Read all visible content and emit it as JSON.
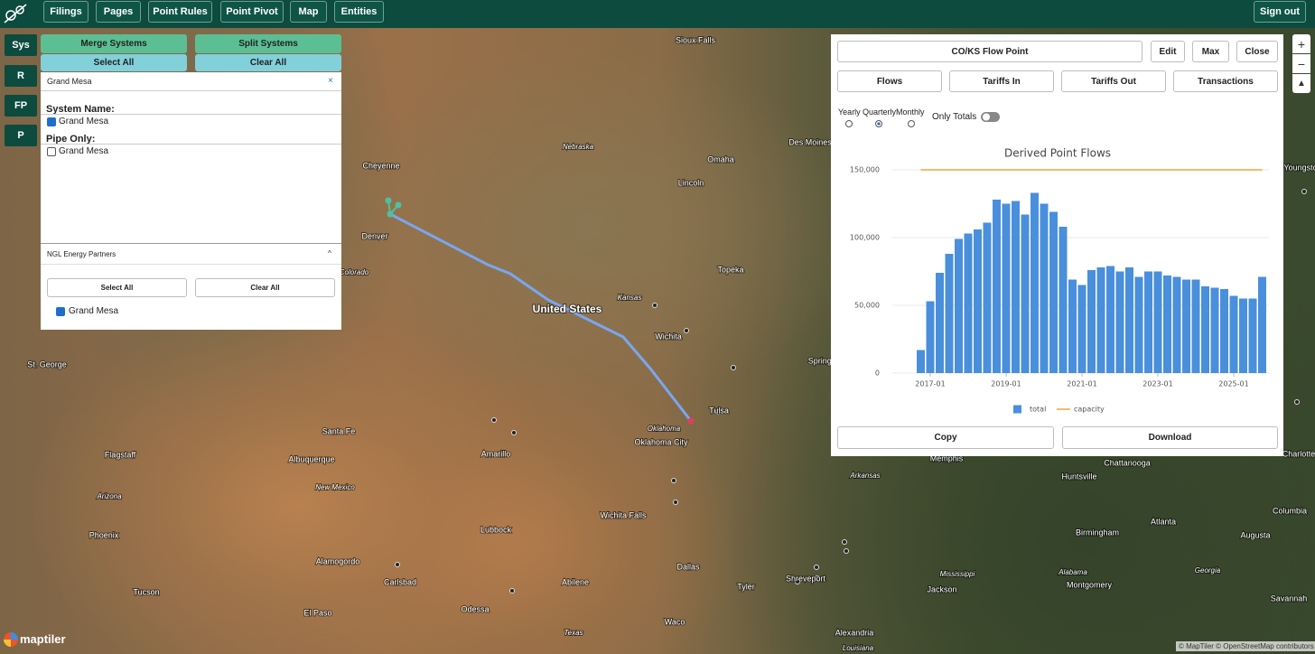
{
  "nav": {
    "items": [
      "Filings",
      "Pages",
      "Point Rules",
      "Point Pivot",
      "Map",
      "Entities"
    ],
    "sign_out": "Sign out"
  },
  "side_buttons": [
    "Sys",
    "R",
    "FP",
    "P"
  ],
  "left_panel": {
    "merge": "Merge Systems",
    "split": "Split Systems",
    "select_all": "Select All",
    "clear_all": "Clear All",
    "search": "Grand Mesa",
    "system_name_label": "System Name:",
    "system_name_option": "Grand Mesa",
    "pipe_only_label": "Pipe Only:",
    "pipe_only_option": "Grand Mesa",
    "group": {
      "title": "NGL Energy Partners",
      "select_all": "Select All",
      "clear_all": "Clear All",
      "option": "Grand Mesa"
    }
  },
  "right_panel": {
    "title": "CO/KS Flow Point",
    "buttons": [
      "Edit",
      "Max",
      "Close"
    ],
    "tabs": [
      "Flows",
      "Tariffs In",
      "Tariffs Out",
      "Transactions"
    ],
    "periods": [
      "Yearly",
      "Quarterly",
      "Monthly"
    ],
    "only_totals": "Only Totals",
    "actions": [
      "Copy",
      "Download"
    ]
  },
  "chart_data": {
    "type": "bar",
    "title": "Derived Point Flows",
    "x": [
      "2016-10",
      "2017-01",
      "2017-04",
      "2017-07",
      "2017-10",
      "2018-01",
      "2018-04",
      "2018-07",
      "2018-10",
      "2019-01",
      "2019-04",
      "2019-07",
      "2019-10",
      "2020-01",
      "2020-04",
      "2020-07",
      "2020-10",
      "2021-01",
      "2021-04",
      "2021-07",
      "2021-10",
      "2022-01",
      "2022-04",
      "2022-07",
      "2022-10",
      "2023-01",
      "2023-04",
      "2023-07",
      "2023-10",
      "2024-01",
      "2024-04",
      "2024-07",
      "2024-10",
      "2025-01",
      "2025-04",
      "2025-07",
      "2025-10"
    ],
    "series": [
      {
        "name": "total",
        "color": "#4a8fdc",
        "values": [
          17000,
          53000,
          74000,
          88000,
          99000,
          103000,
          106000,
          111000,
          128000,
          125000,
          127000,
          117000,
          133000,
          125000,
          119000,
          108000,
          69000,
          65000,
          76000,
          78000,
          79000,
          75000,
          78000,
          71000,
          75000,
          75000,
          72000,
          71000,
          69000,
          69000,
          64000,
          63000,
          62000,
          57000,
          55000,
          55000,
          71000
        ]
      },
      {
        "name": "capacity",
        "type": "line",
        "color": "#f0a535",
        "values": [
          150000,
          150000,
          150000,
          150000,
          150000,
          150000,
          150000,
          150000,
          150000,
          150000,
          150000,
          150000,
          150000,
          150000,
          150000,
          150000,
          150000,
          150000,
          150000,
          150000,
          150000,
          150000,
          150000,
          150000,
          150000,
          150000,
          150000,
          150000,
          150000,
          150000,
          150000,
          150000,
          150000,
          150000,
          150000,
          150000,
          150000
        ]
      }
    ],
    "ylim": [
      0,
      150000
    ],
    "yticks": [
      0,
      {
        "value": 50000,
        "label": "50,000"
      },
      {
        "value": 100000,
        "label": "100,000"
      },
      {
        "value": 150000,
        "label": "150,000"
      }
    ],
    "xticks": [
      "2017-01",
      "2019-01",
      "2021-01",
      "2023-01",
      "2025-01"
    ],
    "grid": true
  },
  "map": {
    "labels": [
      "Sioux Falls",
      "Nebraska",
      "Des Moines",
      "Omaha",
      "Cheyenne",
      "Lincoln",
      "Denver",
      "Colorado",
      "Topeka",
      "Kansas",
      "United States",
      "Wichita",
      "St. George",
      "Springfi",
      "Tulsa",
      "Oklahoma",
      "Oklahoma City",
      "Santa Fe",
      "Amarillo",
      "Flagstaff",
      "Albuquerque",
      "New Mexico",
      "Arizona",
      "Wichita Falls",
      "Lubbock",
      "Phoenix",
      "Alamogordo",
      "Carlsbad",
      "Abilene",
      "Dallas",
      "Tucson",
      "El Paso",
      "Odessa",
      "Tyler",
      "Shreveport",
      "Waco",
      "Texas",
      "Alexandria",
      "Arkansas",
      "Memphis",
      "Chattanooga",
      "Huntsville",
      "Birmingham",
      "Atlanta",
      "Augusta",
      "Columbia",
      "Mississippi",
      "Alabama",
      "Georgia",
      "Jackson",
      "Montgomery",
      "Savannah",
      "Youngsto",
      "Charlotte",
      "Louisiana"
    ],
    "logo": "maptiler",
    "attribution": "© MapTiler © OpenStreetMap contributors"
  }
}
